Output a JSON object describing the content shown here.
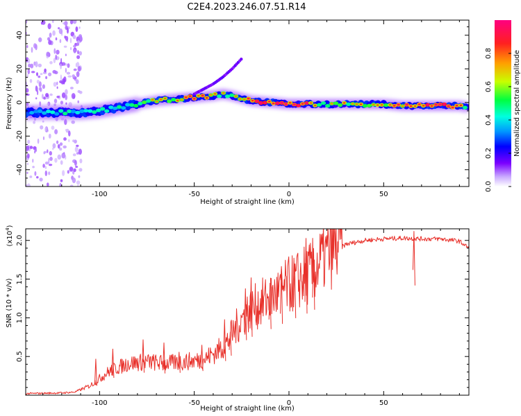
{
  "title": "C2E4.2023.246.07.51.R14",
  "chart_data": [
    {
      "type": "heatmap",
      "name": "spectrogram",
      "xlabel": "Height of straight line (km)",
      "ylabel": "Frequency (Hz)",
      "xlim": [
        -139,
        95
      ],
      "ylim": [
        -50,
        49
      ],
      "xticks": [
        -100,
        -50,
        0,
        50
      ],
      "yticks": [
        -40,
        -20,
        0,
        20,
        40
      ],
      "colorbar": {
        "label": "Normalized spectral amplitude",
        "range": [
          0,
          1
        ],
        "ticks": [
          0.0,
          0.2,
          0.4,
          0.6,
          0.8
        ],
        "colors": [
          "#ffffff",
          "#c9a8ff",
          "#7b00ff",
          "#0000ff",
          "#0096ff",
          "#00ffe0",
          "#00ff40",
          "#c8ff00",
          "#ffa000",
          "#ff2020",
          "#ff0080"
        ]
      },
      "ridge": {
        "x": [
          -139,
          -130,
          -120,
          -110,
          -100,
          -90,
          -80,
          -70,
          -60,
          -50,
          -40,
          -35,
          -30,
          -20,
          -10,
          0,
          10,
          20,
          30,
          40,
          50,
          60,
          70,
          80,
          90,
          95
        ],
        "freq": [
          -6,
          -6,
          -6,
          -6,
          -5,
          -3,
          -1,
          1,
          2,
          3,
          4,
          5,
          4,
          1,
          0,
          -1,
          -1,
          -1,
          -1,
          -1,
          -1,
          -2,
          -2,
          -2,
          -2,
          -3
        ],
        "amplitude": [
          0.35,
          0.35,
          0.45,
          0.4,
          0.5,
          0.45,
          0.55,
          0.6,
          0.55,
          0.75,
          0.6,
          0.55,
          0.5,
          0.85,
          0.9,
          0.75,
          0.85,
          0.5,
          0.6,
          0.65,
          0.6,
          0.75,
          0.8,
          0.85,
          0.7,
          0.35
        ]
      },
      "branch": {
        "x": [
          -50,
          -45,
          -40,
          -35,
          -30,
          -25
        ],
        "freq": [
          5,
          8,
          11,
          15,
          20,
          26
        ]
      }
    },
    {
      "type": "line",
      "name": "snr",
      "xlabel": "Height of straight line (km)",
      "ylabel": "SNR (10 * v/v)",
      "ylabel_scale": "(x10",
      "ylabel_scale_exp": "4",
      "ylabel_scale_close": ")",
      "xlim": [
        -139,
        95
      ],
      "ylim": [
        0,
        2.15
      ],
      "xticks": [
        -100,
        -50,
        0,
        50
      ],
      "yticks": [
        0.5,
        1.0,
        1.5,
        2.0
      ],
      "color": "#e8302a",
      "envelope": {
        "x": [
          -139,
          -120,
          -113,
          -105,
          -95,
          -85,
          -75,
          -65,
          -55,
          -45,
          -38,
          -33,
          -28,
          -22,
          -15,
          -8,
          -2,
          5,
          12,
          18,
          25,
          30,
          40,
          50,
          60,
          70,
          80,
          90,
          95
        ],
        "y": [
          0.02,
          0.03,
          0.04,
          0.12,
          0.3,
          0.4,
          0.42,
          0.4,
          0.42,
          0.45,
          0.55,
          0.65,
          0.85,
          1.05,
          1.15,
          1.25,
          1.35,
          1.45,
          1.55,
          1.72,
          1.86,
          1.95,
          2.0,
          2.02,
          2.03,
          2.02,
          2.02,
          1.99,
          1.9
        ]
      },
      "peaks": [
        {
          "x": -102,
          "y": 0.47
        },
        {
          "x": -93,
          "y": 0.6
        },
        {
          "x": -77,
          "y": 0.72
        },
        {
          "x": -66,
          "y": 0.68
        },
        {
          "x": -58,
          "y": 0.56
        },
        {
          "x": -46,
          "y": 0.65
        },
        {
          "x": -34,
          "y": 0.98
        },
        {
          "x": -31,
          "y": 0.82
        },
        {
          "x": -23,
          "y": 1.38
        },
        {
          "x": -20,
          "y": 1.52
        },
        {
          "x": -10,
          "y": 1.45
        },
        {
          "x": -4,
          "y": 1.63
        },
        {
          "x": 3,
          "y": 1.7
        },
        {
          "x": 9,
          "y": 2.03
        },
        {
          "x": 13,
          "y": 1.9
        },
        {
          "x": 66,
          "y": 2.12
        }
      ]
    }
  ]
}
